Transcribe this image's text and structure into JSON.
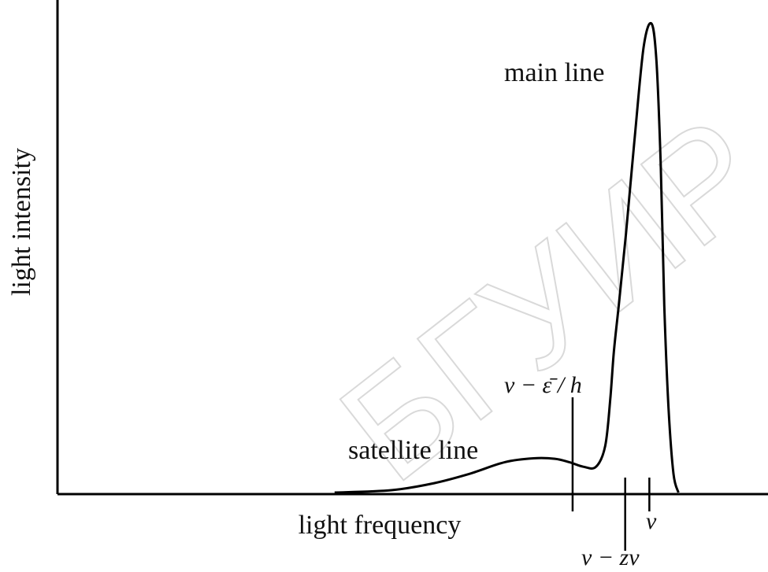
{
  "chart_data": {
    "type": "line",
    "title": "",
    "xlabel": "light frequency",
    "ylabel": "light intensity",
    "ylim": [
      0,
      100
    ],
    "xlim": [
      0,
      100
    ],
    "grid": false,
    "legend": "none",
    "series": [
      {
        "name": "",
        "x": [
          39,
          47,
          53,
          58,
          63,
          67,
          70,
          72,
          74,
          75.8,
          77.1,
          77.8,
          78.3,
          79.0,
          80.0,
          81.2,
          82.5,
          83.6,
          84.3,
          84.9,
          85.4,
          86.0,
          86.7,
          87.4
        ],
        "y": [
          0,
          0.5,
          2,
          4,
          6.5,
          7.3,
          7.2,
          6.5,
          5.5,
          5.5,
          10,
          20,
          30,
          40,
          55,
          75,
          95,
          100,
          92,
          70,
          40,
          18,
          4,
          0
        ]
      }
    ],
    "annotations": [
      {
        "text": "main line"
      },
      {
        "text": "satellite line"
      },
      {
        "text": "ν − ε̄ / h"
      },
      {
        "text": "ν − zν"
      },
      {
        "text": "ν"
      }
    ],
    "markers": [
      {
        "x": 72.5
      },
      {
        "x": 79.9
      },
      {
        "x": 83.3
      }
    ]
  },
  "watermark": "БГУИР"
}
